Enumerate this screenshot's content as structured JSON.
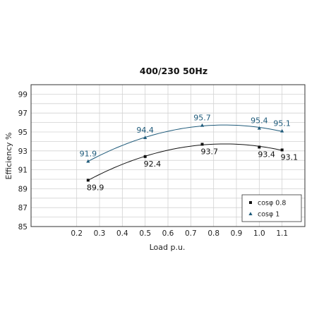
{
  "chart_data": {
    "type": "line",
    "title": "400/230 50Hz",
    "xlabel": "Load p.u.",
    "ylabel": "Efficiency %",
    "xlim": [
      0,
      1.2
    ],
    "ylim": [
      85,
      100
    ],
    "x_ticks": [
      "0.2",
      "0.3",
      "0.4",
      "0.5",
      "0.6",
      "0.7",
      "0.8",
      "0.9",
      "1.0",
      "1.1"
    ],
    "x_tick_values": [
      0.2,
      0.3,
      0.4,
      0.5,
      0.6,
      0.7,
      0.8,
      0.9,
      1.0,
      1.1
    ],
    "y_ticks": [
      "85",
      "87",
      "89",
      "91",
      "93",
      "95",
      "97",
      "99"
    ],
    "y_tick_values": [
      85,
      87,
      89,
      91,
      93,
      95,
      97,
      99
    ],
    "grid": true,
    "legend_position": "bottom-right",
    "series": [
      {
        "name": "cosφ 0.8",
        "color": "#111111",
        "marker": "square",
        "x": [
          0.25,
          0.5,
          0.75,
          1.0,
          1.1
        ],
        "values": [
          89.9,
          92.4,
          93.7,
          93.4,
          93.1
        ],
        "labels": [
          "89.9",
          "92.4",
          "93.7",
          "93.4",
          "93.1"
        ]
      },
      {
        "name": "cosφ 1",
        "color": "#1e5a7a",
        "marker": "triangle",
        "x": [
          0.25,
          0.5,
          0.75,
          1.0,
          1.1
        ],
        "values": [
          91.9,
          94.4,
          95.7,
          95.4,
          95.1
        ],
        "labels": [
          "91.9",
          "94.4",
          "95.7",
          "95.4",
          "95.1"
        ]
      }
    ]
  }
}
